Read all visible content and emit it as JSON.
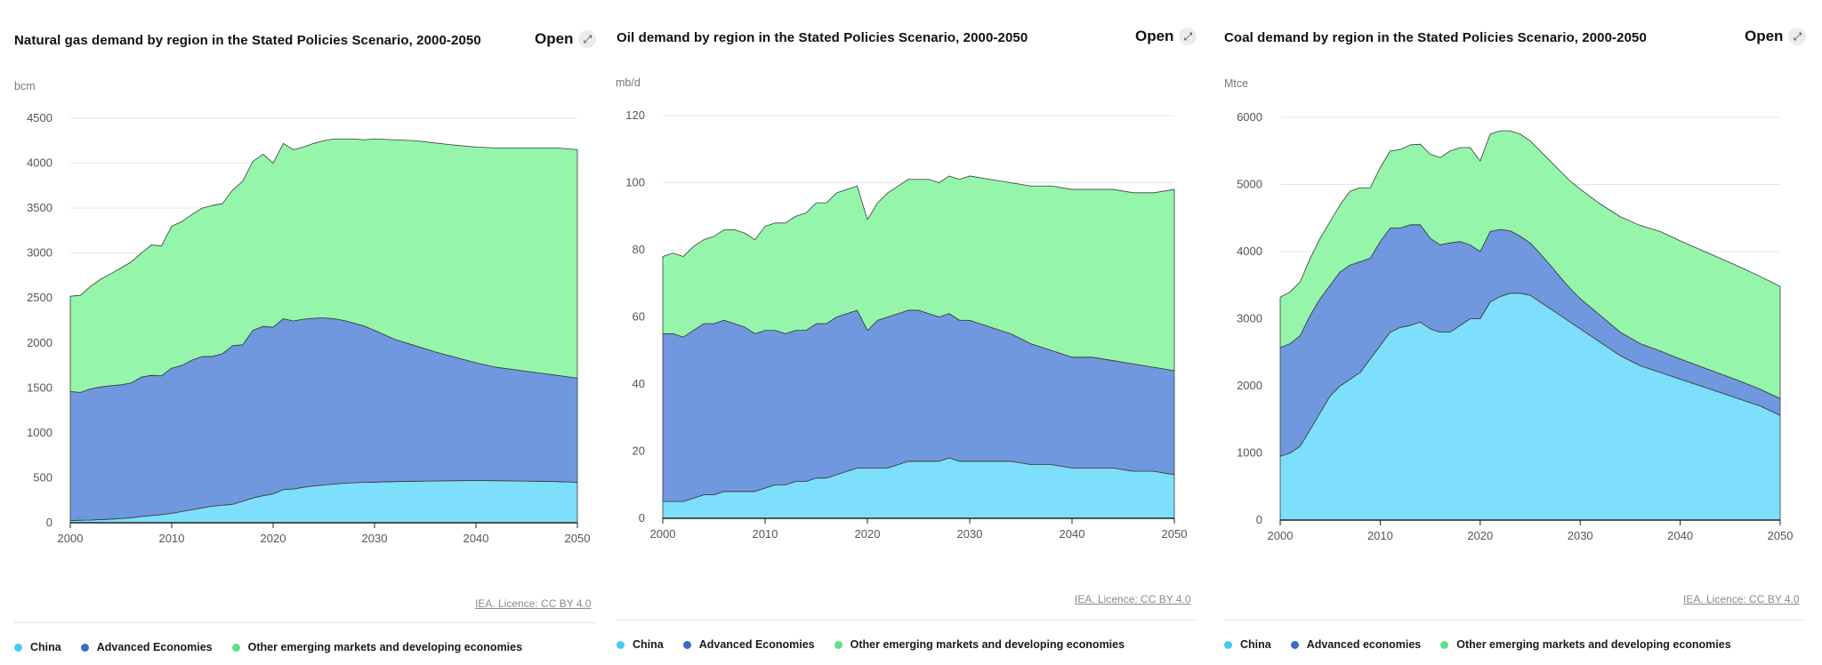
{
  "panels": [
    {
      "title": "Natural gas demand by region in the Stated Policies Scenario, 2000-2050",
      "open_label": "Open",
      "licence": "IEA. Licence: CC BY 4.0",
      "legend": [
        {
          "label": "China",
          "color": "#46cbf2"
        },
        {
          "label": "Advanced Economies",
          "color": "#3a6bc9"
        },
        {
          "label": "Other emerging markets and developing economies",
          "color": "#5de08a"
        }
      ]
    },
    {
      "title": "Oil demand by region in the Stated Policies Scenario, 2000-2050",
      "open_label": "Open",
      "licence": "IEA. Licence: CC BY 4.0",
      "legend": [
        {
          "label": "China",
          "color": "#46cbf2"
        },
        {
          "label": "Advanced Economies",
          "color": "#3a6bc9"
        },
        {
          "label": "Other emerging markets and developing economies",
          "color": "#5de08a"
        }
      ]
    },
    {
      "title": "Coal demand by region in the Stated Policies Scenario, 2000-2050",
      "open_label": "Open",
      "licence": "IEA. Licence: CC BY 4.0",
      "legend": [
        {
          "label": "China",
          "color": "#46cbf2"
        },
        {
          "label": "Advanced economies",
          "color": "#3a6bc9"
        },
        {
          "label": "Other emerging markets and developing economies",
          "color": "#5de08a"
        }
      ]
    }
  ],
  "colors": {
    "china": "#7ddffb",
    "advanced": "#7098de",
    "other": "#95f5ab",
    "edge": "#3a3a3a"
  },
  "chart_data": [
    {
      "type": "area",
      "title": "Natural gas demand by region in the Stated Policies Scenario, 2000-2050",
      "ylabel": "bcm",
      "stacked": true,
      "xlim": [
        2000,
        2050
      ],
      "ylim": [
        0,
        4500
      ],
      "xticks": [
        2000,
        2010,
        2020,
        2030,
        2040,
        2050
      ],
      "yticks": [
        0,
        500,
        1000,
        1500,
        2000,
        2500,
        3000,
        3500,
        4000,
        4500
      ],
      "x": [
        2000,
        2001,
        2002,
        2003,
        2004,
        2005,
        2006,
        2007,
        2008,
        2009,
        2010,
        2011,
        2012,
        2013,
        2014,
        2015,
        2016,
        2017,
        2018,
        2019,
        2020,
        2021,
        2022,
        2023,
        2024,
        2025,
        2026,
        2027,
        2028,
        2029,
        2030,
        2032,
        2034,
        2036,
        2038,
        2040,
        2042,
        2044,
        2046,
        2048,
        2050
      ],
      "series": [
        {
          "name": "China",
          "values": [
            25,
            28,
            30,
            35,
            40,
            47,
            55,
            70,
            80,
            90,
            105,
            125,
            145,
            165,
            185,
            195,
            205,
            240,
            275,
            300,
            320,
            370,
            375,
            395,
            410,
            420,
            430,
            440,
            445,
            450,
            452,
            458,
            462,
            465,
            468,
            470,
            468,
            465,
            462,
            458,
            450
          ]
        },
        {
          "name": "Advanced Economies",
          "values": [
            1435,
            1422,
            1460,
            1475,
            1485,
            1488,
            1500,
            1550,
            1560,
            1545,
            1615,
            1625,
            1665,
            1685,
            1665,
            1685,
            1765,
            1740,
            1865,
            1885,
            1855,
            1900,
            1870,
            1870,
            1865,
            1860,
            1840,
            1810,
            1775,
            1738,
            1688,
            1582,
            1508,
            1435,
            1372,
            1310,
            1262,
            1235,
            1208,
            1182,
            1160
          ]
        },
        {
          "name": "Other emerging markets and developing economies",
          "values": [
            1060,
            1080,
            1140,
            1200,
            1245,
            1300,
            1345,
            1380,
            1450,
            1445,
            1580,
            1600,
            1620,
            1650,
            1680,
            1670,
            1730,
            1820,
            1880,
            1915,
            1825,
            1950,
            1905,
            1915,
            1945,
            1970,
            2000,
            2020,
            2050,
            2072,
            2130,
            2220,
            2280,
            2325,
            2360,
            2400,
            2440,
            2470,
            2500,
            2530,
            2540
          ]
        }
      ]
    },
    {
      "type": "area",
      "title": "Oil demand by region in the Stated Policies Scenario, 2000-2050",
      "ylabel": "mb/d",
      "stacked": true,
      "xlim": [
        2000,
        2050
      ],
      "ylim": [
        0,
        120
      ],
      "xticks": [
        2000,
        2010,
        2020,
        2030,
        2040,
        2050
      ],
      "yticks": [
        0,
        20,
        40,
        60,
        80,
        100,
        120
      ],
      "x": [
        2000,
        2001,
        2002,
        2003,
        2004,
        2005,
        2006,
        2007,
        2008,
        2009,
        2010,
        2011,
        2012,
        2013,
        2014,
        2015,
        2016,
        2017,
        2018,
        2019,
        2020,
        2021,
        2022,
        2023,
        2024,
        2025,
        2026,
        2027,
        2028,
        2029,
        2030,
        2032,
        2034,
        2036,
        2038,
        2040,
        2042,
        2044,
        2046,
        2048,
        2050
      ],
      "series": [
        {
          "name": "China",
          "values": [
            5,
            5,
            5,
            6,
            7,
            7,
            8,
            8,
            8,
            8,
            9,
            10,
            10,
            11,
            11,
            12,
            12,
            13,
            14,
            15,
            15,
            15,
            15,
            16,
            17,
            17,
            17,
            17,
            18,
            17,
            17,
            17,
            17,
            16,
            16,
            15,
            15,
            15,
            14,
            14,
            13
          ]
        },
        {
          "name": "Advanced Economies",
          "values": [
            50,
            50,
            49,
            50,
            51,
            51,
            51,
            50,
            49,
            47,
            47,
            46,
            45,
            45,
            45,
            46,
            46,
            47,
            47,
            47,
            41,
            44,
            45,
            45,
            45,
            45,
            44,
            43,
            43,
            42,
            42,
            40,
            38,
            36,
            34,
            33,
            33,
            32,
            32,
            31,
            31
          ]
        },
        {
          "name": "Other emerging markets and developing economies",
          "values": [
            23,
            24,
            24,
            25,
            25,
            26,
            27,
            28,
            28,
            28,
            31,
            32,
            33,
            34,
            35,
            36,
            36,
            37,
            37,
            37,
            33,
            35,
            37,
            38,
            39,
            39,
            40,
            40,
            41,
            42,
            43,
            44,
            45,
            47,
            49,
            50,
            50,
            51,
            51,
            52,
            54
          ]
        }
      ]
    },
    {
      "type": "area",
      "title": "Coal demand by region in the Stated Policies Scenario, 2000-2050",
      "ylabel": "Mtce",
      "stacked": true,
      "xlim": [
        2000,
        2050
      ],
      "ylim": [
        0,
        6000
      ],
      "xticks": [
        2000,
        2010,
        2020,
        2030,
        2040,
        2050
      ],
      "yticks": [
        0,
        1000,
        2000,
        3000,
        4000,
        5000,
        6000
      ],
      "x": [
        2000,
        2001,
        2002,
        2003,
        2004,
        2005,
        2006,
        2007,
        2008,
        2009,
        2010,
        2011,
        2012,
        2013,
        2014,
        2015,
        2016,
        2017,
        2018,
        2019,
        2020,
        2021,
        2022,
        2023,
        2024,
        2025,
        2026,
        2027,
        2028,
        2029,
        2030,
        2032,
        2034,
        2036,
        2038,
        2040,
        2042,
        2044,
        2046,
        2048,
        2050
      ],
      "series": [
        {
          "name": "China",
          "values": [
            950,
            1000,
            1100,
            1350,
            1600,
            1850,
            2000,
            2100,
            2200,
            2400,
            2600,
            2800,
            2870,
            2900,
            2950,
            2850,
            2800,
            2800,
            2900,
            3000,
            3000,
            3250,
            3330,
            3380,
            3380,
            3350,
            3250,
            3150,
            3050,
            2950,
            2850,
            2650,
            2450,
            2300,
            2200,
            2100,
            2000,
            1900,
            1800,
            1700,
            1560
          ]
        },
        {
          "name": "Advanced economies",
          "values": [
            1620,
            1630,
            1650,
            1700,
            1700,
            1650,
            1700,
            1700,
            1650,
            1500,
            1550,
            1550,
            1480,
            1500,
            1450,
            1350,
            1300,
            1330,
            1250,
            1100,
            1000,
            1050,
            1000,
            930,
            850,
            780,
            720,
            650,
            570,
            500,
            450,
            400,
            350,
            330,
            320,
            300,
            290,
            280,
            270,
            250,
            250
          ]
        },
        {
          "name": "Other emerging markets and developing economies",
          "values": [
            750,
            770,
            800,
            850,
            900,
            950,
            1000,
            1100,
            1100,
            1050,
            1100,
            1150,
            1170,
            1190,
            1200,
            1250,
            1300,
            1370,
            1400,
            1450,
            1350,
            1450,
            1470,
            1490,
            1520,
            1520,
            1530,
            1550,
            1580,
            1600,
            1630,
            1660,
            1720,
            1760,
            1780,
            1760,
            1740,
            1720,
            1700,
            1680,
            1670
          ]
        }
      ]
    }
  ]
}
